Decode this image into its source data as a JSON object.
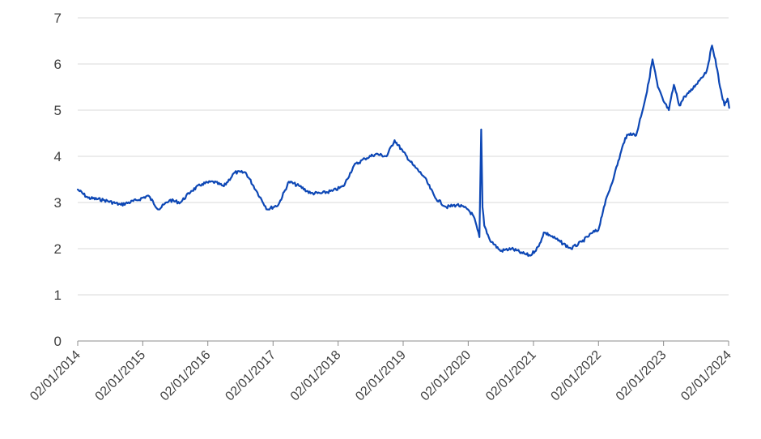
{
  "chart_data": {
    "type": "line",
    "title": "",
    "xlabel": "",
    "ylabel": "",
    "ylim": [
      0,
      7
    ],
    "yticks": [
      0,
      1,
      2,
      3,
      4,
      5,
      6,
      7
    ],
    "grid": "horizontal",
    "x_tick_labels": [
      "02/01/2014",
      "02/01/2015",
      "02/01/2016",
      "02/01/2017",
      "02/01/2018",
      "02/01/2019",
      "02/01/2020",
      "02/01/2021",
      "02/01/2022",
      "02/01/2023",
      "02/01/2024"
    ],
    "series": [
      {
        "color": "#0d47b5",
        "x": [
          "2014-01-02",
          "2014-03-01",
          "2014-06-01",
          "2014-09-01",
          "2014-12-01",
          "2015-02-01",
          "2015-04-01",
          "2015-06-01",
          "2015-08-01",
          "2015-10-01",
          "2015-12-01",
          "2016-02-01",
          "2016-04-01",
          "2016-06-01",
          "2016-08-01",
          "2016-10-01",
          "2016-12-01",
          "2017-02-01",
          "2017-04-01",
          "2017-06-01",
          "2017-08-01",
          "2017-10-01",
          "2017-12-01",
          "2018-02-01",
          "2018-04-01",
          "2018-06-01",
          "2018-08-01",
          "2018-10-01",
          "2018-11-15",
          "2019-01-01",
          "2019-03-01",
          "2019-05-01",
          "2019-07-01",
          "2019-09-01",
          "2019-11-01",
          "2020-01-01",
          "2020-02-01",
          "2020-03-05",
          "2020-03-15",
          "2020-03-22",
          "2020-04-01",
          "2020-05-01",
          "2020-07-01",
          "2020-09-01",
          "2020-11-01",
          "2020-12-15",
          "2021-02-01",
          "2021-03-01",
          "2021-04-01",
          "2021-06-01",
          "2021-08-01",
          "2021-10-01",
          "2021-12-01",
          "2022-01-01",
          "2022-02-01",
          "2022-04-01",
          "2022-06-01",
          "2022-07-01",
          "2022-08-01",
          "2022-10-01",
          "2022-11-01",
          "2022-12-01",
          "2023-01-01",
          "2023-02-01",
          "2023-03-01",
          "2023-04-01",
          "2023-05-01",
          "2023-06-01",
          "2023-07-01",
          "2023-08-01",
          "2023-09-01",
          "2023-10-01",
          "2023-10-20",
          "2023-11-15",
          "2023-12-10",
          "2023-12-27",
          "2024-01-05"
        ],
        "values": [
          3.28,
          3.1,
          3.05,
          2.95,
          3.05,
          3.15,
          2.85,
          3.05,
          3.0,
          3.25,
          3.4,
          3.45,
          3.35,
          3.65,
          3.65,
          3.25,
          2.85,
          2.95,
          3.45,
          3.35,
          3.2,
          3.2,
          3.25,
          3.35,
          3.8,
          3.95,
          4.05,
          4.0,
          4.35,
          4.1,
          3.8,
          3.55,
          3.1,
          2.9,
          2.95,
          2.85,
          2.7,
          2.25,
          4.58,
          2.9,
          2.5,
          2.2,
          1.95,
          2.0,
          1.9,
          1.85,
          2.05,
          2.35,
          2.3,
          2.15,
          2.0,
          2.15,
          2.35,
          2.4,
          2.9,
          3.6,
          4.4,
          4.5,
          4.45,
          5.4,
          6.1,
          5.5,
          5.2,
          5.0,
          5.55,
          5.1,
          5.3,
          5.4,
          5.55,
          5.7,
          5.85,
          6.4,
          6.1,
          5.5,
          5.1,
          5.25,
          5.05
        ]
      }
    ]
  }
}
